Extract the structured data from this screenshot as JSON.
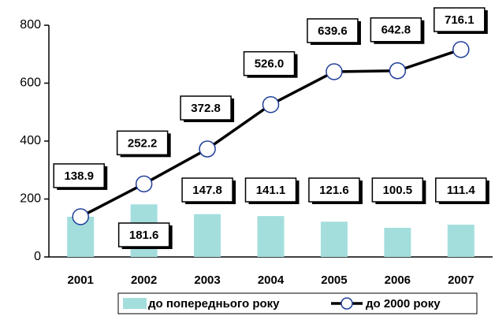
{
  "chart_data": {
    "type": "bar_line",
    "categories": [
      "2001",
      "2002",
      "2003",
      "2004",
      "2005",
      "2006",
      "2007"
    ],
    "series": [
      {
        "name": "до попереднього року",
        "type": "bar",
        "color": "#a3dedd",
        "values": [
          138.9,
          181.6,
          147.8,
          141.1,
          121.6,
          100.5,
          111.4
        ],
        "value_labels": [
          null,
          "181.6",
          "147.8",
          "141.1",
          "121.6",
          "100.5",
          "111.4"
        ]
      },
      {
        "name": "до 2000 року",
        "type": "line",
        "color": "#000000",
        "marker_color": "#1f3d99",
        "values": [
          138.9,
          252.2,
          372.8,
          526.0,
          639.6,
          642.8,
          716.1
        ],
        "value_labels": [
          "138.9",
          "252.2",
          "372.8",
          "526.0",
          "639.6",
          "642.8",
          "716.1"
        ]
      }
    ],
    "ylim": [
      0,
      800
    ],
    "yticks": [
      0,
      200,
      400,
      600,
      800
    ],
    "legend": "bottom"
  }
}
